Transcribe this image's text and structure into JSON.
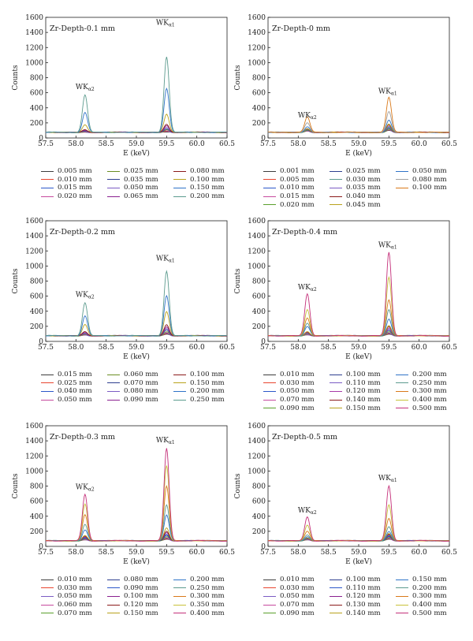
{
  "chart_data": [
    {
      "type": "line",
      "title": "Zr-Depth-0.1 mm",
      "xlabel": "E (keV)",
      "ylabel": "Counts",
      "xlim": [
        57.5,
        60.5
      ],
      "ylim": [
        0,
        1600
      ],
      "xticks": [
        "57.5",
        "58.0",
        "58.5",
        "59.0",
        "59.5",
        "60.0",
        "60.5"
      ],
      "yticks": [
        "0",
        "200",
        "400",
        "600",
        "800",
        "1000",
        "1200",
        "1400",
        "1600"
      ],
      "peaks": [
        {
          "main": "WK",
          "sub": "α2",
          "x": 58.15,
          "y": 650
        },
        {
          "main": "WK",
          "sub": "α1",
          "x": 59.48,
          "y": 1500
        }
      ],
      "series": [
        {
          "name": "0.005 mm",
          "color": "#3d3d3d",
          "values": [
            75,
            78
          ]
        },
        {
          "name": "0.010 mm",
          "color": "#e8452f",
          "values": [
            78,
            85
          ]
        },
        {
          "name": "0.015 mm",
          "color": "#2c57c9",
          "values": [
            80,
            95
          ]
        },
        {
          "name": "0.020 mm",
          "color": "#c64a9e",
          "values": [
            82,
            100
          ]
        },
        {
          "name": "0.025 mm",
          "color": "#6b8e23",
          "values": [
            85,
            110
          ]
        },
        {
          "name": "0.035 mm",
          "color": "#2e3f8f",
          "values": [
            88,
            120
          ]
        },
        {
          "name": "0.050 mm",
          "color": "#7b5cc4",
          "values": [
            95,
            140
          ]
        },
        {
          "name": "0.065 mm",
          "color": "#8a2090",
          "values": [
            100,
            160
          ]
        },
        {
          "name": "0.080 mm",
          "color": "#8b1a1a",
          "values": [
            110,
            180
          ]
        },
        {
          "name": "0.100 mm",
          "color": "#b9a21c",
          "values": [
            180,
            320
          ]
        },
        {
          "name": "0.150 mm",
          "color": "#2f73c8",
          "values": [
            340,
            660
          ]
        },
        {
          "name": "0.200 mm",
          "color": "#5c9b8e",
          "values": [
            570,
            1075
          ]
        }
      ]
    },
    {
      "type": "line",
      "title": "Zr-Depth-0 mm",
      "xlabel": "E (keV)",
      "ylabel": "Counts",
      "xlim": [
        57.5,
        60.5
      ],
      "ylim": [
        0,
        1600
      ],
      "xticks": [
        "57.5",
        "58.0",
        "58.5",
        "59.0",
        "59.5",
        "60.0",
        "60.5"
      ],
      "yticks": [
        "0",
        "200",
        "400",
        "600",
        "800",
        "1000",
        "1200",
        "1400",
        "1600"
      ],
      "peaks": [
        {
          "main": "WK",
          "sub": "α2",
          "x": 58.15,
          "y": 270
        },
        {
          "main": "WK",
          "sub": "α1",
          "x": 59.48,
          "y": 590
        }
      ],
      "series": [
        {
          "name": "0.001 mm",
          "color": "#3d3d3d",
          "values": [
            90,
            100
          ]
        },
        {
          "name": "0.005 mm",
          "color": "#e8452f",
          "values": [
            92,
            105
          ]
        },
        {
          "name": "0.010 mm",
          "color": "#2c57c9",
          "values": [
            95,
            110
          ]
        },
        {
          "name": "0.015 mm",
          "color": "#c64a9e",
          "values": [
            98,
            115
          ]
        },
        {
          "name": "0.020 mm",
          "color": "#5aa02c",
          "values": [
            100,
            120
          ]
        },
        {
          "name": "0.025 mm",
          "color": "#2e3f8f",
          "values": [
            105,
            130
          ]
        },
        {
          "name": "0.030 mm",
          "color": "#5c9b8e",
          "values": [
            110,
            140
          ]
        },
        {
          "name": "0.035 mm",
          "color": "#7b5cc4",
          "values": [
            115,
            150
          ]
        },
        {
          "name": "0.040 mm",
          "color": "#8b1a1a",
          "values": [
            120,
            170
          ]
        },
        {
          "name": "0.045 mm",
          "color": "#b9a21c",
          "values": [
            130,
            190
          ]
        },
        {
          "name": "0.050 mm",
          "color": "#2f73c8",
          "values": [
            150,
            240
          ]
        },
        {
          "name": "0.080 mm",
          "color": "#a0a0a0",
          "values": [
            200,
            350
          ]
        },
        {
          "name": "0.100 mm",
          "color": "#d9791a",
          "values": [
            280,
            540
          ]
        }
      ]
    },
    {
      "type": "line",
      "title": "Zr-Depth-0.2 mm",
      "xlabel": "E (keV)",
      "ylabel": "Counts",
      "xlim": [
        57.5,
        60.5
      ],
      "ylim": [
        0,
        1600
      ],
      "xticks": [
        "57.5",
        "58.0",
        "58.5",
        "59.0",
        "59.5",
        "60.0",
        "60.5"
      ],
      "yticks": [
        "0",
        "200",
        "400",
        "600",
        "800",
        "1000",
        "1200",
        "1400",
        "1600"
      ],
      "peaks": [
        {
          "main": "WK",
          "sub": "α2",
          "x": 58.15,
          "y": 590
        },
        {
          "main": "WK",
          "sub": "α1",
          "x": 59.48,
          "y": 1070
        }
      ],
      "series": [
        {
          "name": "0.015 mm",
          "color": "#3d3d3d",
          "values": [
            82,
            95
          ]
        },
        {
          "name": "0.025 mm",
          "color": "#e8452f",
          "values": [
            85,
            100
          ]
        },
        {
          "name": "0.040 mm",
          "color": "#2c57c9",
          "values": [
            88,
            110
          ]
        },
        {
          "name": "0.050 mm",
          "color": "#c64a9e",
          "values": [
            92,
            120
          ]
        },
        {
          "name": "0.060 mm",
          "color": "#6b8e23",
          "values": [
            95,
            130
          ]
        },
        {
          "name": "0.070 mm",
          "color": "#2e3f8f",
          "values": [
            100,
            150
          ]
        },
        {
          "name": "0.080 mm",
          "color": "#7b5cc4",
          "values": [
            105,
            170
          ]
        },
        {
          "name": "0.090 mm",
          "color": "#8a2090",
          "values": [
            115,
            190
          ]
        },
        {
          "name": "0.100 mm",
          "color": "#8b1a1a",
          "values": [
            130,
            220
          ]
        },
        {
          "name": "0.150 mm",
          "color": "#b9a21c",
          "values": [
            230,
            400
          ]
        },
        {
          "name": "0.200 mm",
          "color": "#2f73c8",
          "values": [
            340,
            610
          ]
        },
        {
          "name": "0.250 mm",
          "color": "#5c9b8e",
          "values": [
            510,
            930
          ]
        }
      ]
    },
    {
      "type": "line",
      "title": "Zr-Depth-0.4 mm",
      "xlabel": "E (keV)",
      "ylabel": "Counts",
      "xlim": [
        57.5,
        60.5
      ],
      "ylim": [
        0,
        1600
      ],
      "xticks": [
        "57.5",
        "58.0",
        "58.5",
        "59.0",
        "59.5",
        "60.0",
        "60.5"
      ],
      "yticks": [
        "0",
        "200",
        "400",
        "600",
        "800",
        "1000",
        "1200",
        "1400",
        "1600"
      ],
      "peaks": [
        {
          "main": "WK",
          "sub": "α2",
          "x": 58.15,
          "y": 690
        },
        {
          "main": "WK",
          "sub": "α1",
          "x": 59.48,
          "y": 1250
        }
      ],
      "series": [
        {
          "name": "0.010 mm",
          "color": "#3d3d3d",
          "values": [
            85,
            95
          ]
        },
        {
          "name": "0.030 mm",
          "color": "#e8452f",
          "values": [
            88,
            100
          ]
        },
        {
          "name": "0.050 mm",
          "color": "#2c57c9",
          "values": [
            92,
            110
          ]
        },
        {
          "name": "0.070 mm",
          "color": "#c64a9e",
          "values": [
            95,
            120
          ]
        },
        {
          "name": "0.090 mm",
          "color": "#5aa02c",
          "values": [
            100,
            130
          ]
        },
        {
          "name": "0.100 mm",
          "color": "#2e3f8f",
          "values": [
            105,
            145
          ]
        },
        {
          "name": "0.110 mm",
          "color": "#7b5cc4",
          "values": [
            110,
            160
          ]
        },
        {
          "name": "0.120 mm",
          "color": "#a83aa8",
          "values": [
            115,
            175
          ]
        },
        {
          "name": "0.140 mm",
          "color": "#8b1a1a",
          "values": [
            125,
            195
          ]
        },
        {
          "name": "0.150 mm",
          "color": "#b9a21c",
          "values": [
            135,
            215
          ]
        },
        {
          "name": "0.200 mm",
          "color": "#2f73c8",
          "values": [
            200,
            300
          ]
        },
        {
          "name": "0.250 mm",
          "color": "#5c9b8e",
          "values": [
            240,
            420
          ]
        },
        {
          "name": "0.300 mm",
          "color": "#d9791a",
          "values": [
            310,
            550
          ]
        },
        {
          "name": "0.400 mm",
          "color": "#c8c23a",
          "values": [
            420,
            850
          ]
        },
        {
          "name": "0.500 mm",
          "color": "#c4307a",
          "values": [
            630,
            1180
          ]
        }
      ]
    },
    {
      "type": "line",
      "title": "Zr-Depth-0.3 mm",
      "xlabel": "E (keV)",
      "ylabel": "Counts",
      "xlim": [
        57.5,
        60.5
      ],
      "ylim": [
        0,
        1600
      ],
      "xticks": [
        "57.5",
        "58.0",
        "58.5",
        "59.0",
        "59.5",
        "60.0",
        "60.5"
      ],
      "yticks": [
        "0",
        "200",
        "400",
        "600",
        "800",
        "1000",
        "1200",
        "1400",
        "1600"
      ],
      "peaks": [
        {
          "main": "WK",
          "sub": "α2",
          "x": 58.15,
          "y": 760
        },
        {
          "main": "WK",
          "sub": "α1",
          "x": 59.48,
          "y": 1380
        }
      ],
      "series": [
        {
          "name": "0.010 mm",
          "color": "#3d3d3d",
          "values": [
            85,
            95
          ]
        },
        {
          "name": "0.030 mm",
          "color": "#e8452f",
          "values": [
            88,
            100
          ]
        },
        {
          "name": "0.050 mm",
          "color": "#7b5cc4",
          "values": [
            92,
            110
          ]
        },
        {
          "name": "0.060 mm",
          "color": "#c64a9e",
          "values": [
            95,
            120
          ]
        },
        {
          "name": "0.070 mm",
          "color": "#5aa02c",
          "values": [
            100,
            130
          ]
        },
        {
          "name": "0.080 mm",
          "color": "#2e3f8f",
          "values": [
            105,
            145
          ]
        },
        {
          "name": "0.090 mm",
          "color": "#2c57c9",
          "values": [
            110,
            160
          ]
        },
        {
          "name": "0.100 mm",
          "color": "#8a2090",
          "values": [
            120,
            180
          ]
        },
        {
          "name": "0.120 mm",
          "color": "#8b1a1a",
          "values": [
            135,
            200
          ]
        },
        {
          "name": "0.150 mm",
          "color": "#b9a21c",
          "values": [
            150,
            250
          ]
        },
        {
          "name": "0.200 mm",
          "color": "#2f73c8",
          "values": [
            220,
            420
          ]
        },
        {
          "name": "0.250 mm",
          "color": "#5c9b8e",
          "values": [
            290,
            550
          ]
        },
        {
          "name": "0.300 mm",
          "color": "#d9791a",
          "values": [
            420,
            800
          ]
        },
        {
          "name": "0.350 mm",
          "color": "#c8c23a",
          "values": [
            560,
            1070
          ]
        },
        {
          "name": "0.400 mm",
          "color": "#c4307a",
          "values": [
            690,
            1300
          ]
        }
      ]
    },
    {
      "type": "line",
      "title": "Zr-Depth-0.5 mm",
      "xlabel": "E (keV)",
      "ylabel": "Counts",
      "xlim": [
        57.5,
        60.5
      ],
      "ylim": [
        0,
        1600
      ],
      "xticks": [
        "57.5",
        "58.0",
        "58.5",
        "59.0",
        "59.5",
        "60.0",
        "60.5"
      ],
      "yticks": [
        "0",
        "200",
        "400",
        "600",
        "800",
        "1000",
        "1200",
        "1400",
        "1600"
      ],
      "peaks": [
        {
          "main": "WK",
          "sub": "α2",
          "x": 58.15,
          "y": 450
        },
        {
          "main": "WK",
          "sub": "α1",
          "x": 59.48,
          "y": 880
        }
      ],
      "series": [
        {
          "name": "0.010 mm",
          "color": "#3d3d3d",
          "values": [
            85,
            95
          ]
        },
        {
          "name": "0.030 mm",
          "color": "#e8452f",
          "values": [
            88,
            100
          ]
        },
        {
          "name": "0.050 mm",
          "color": "#7b5cc4",
          "values": [
            92,
            108
          ]
        },
        {
          "name": "0.070 mm",
          "color": "#c64a9e",
          "values": [
            95,
            115
          ]
        },
        {
          "name": "0.090 mm",
          "color": "#5aa02c",
          "values": [
            98,
            122
          ]
        },
        {
          "name": "0.100 mm",
          "color": "#2e3f8f",
          "values": [
            100,
            130
          ]
        },
        {
          "name": "0.110 mm",
          "color": "#2c57c9",
          "values": [
            104,
            140
          ]
        },
        {
          "name": "0.120 mm",
          "color": "#8a2090",
          "values": [
            108,
            150
          ]
        },
        {
          "name": "0.130 mm",
          "color": "#8b1a1a",
          "values": [
            112,
            160
          ]
        },
        {
          "name": "0.140 mm",
          "color": "#b9a21c",
          "values": [
            118,
            175
          ]
        },
        {
          "name": "0.150 mm",
          "color": "#2f73c8",
          "values": [
            130,
            200
          ]
        },
        {
          "name": "0.200 mm",
          "color": "#5c9b8e",
          "values": [
            150,
            260
          ]
        },
        {
          "name": "0.300 mm",
          "color": "#d9791a",
          "values": [
            200,
            370
          ]
        },
        {
          "name": "0.400 mm",
          "color": "#c8c23a",
          "values": [
            280,
            550
          ]
        },
        {
          "name": "0.500 mm",
          "color": "#c4307a",
          "values": [
            390,
            800
          ]
        }
      ]
    }
  ]
}
